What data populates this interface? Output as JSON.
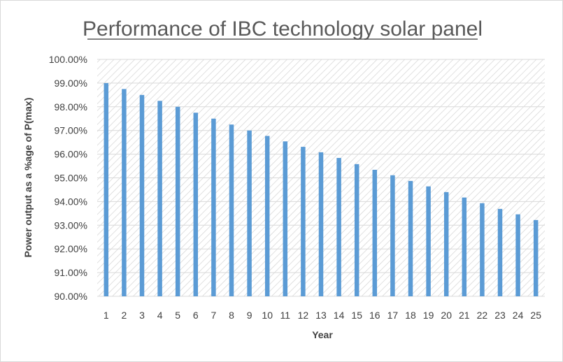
{
  "chart_data": {
    "type": "bar",
    "title": "Performance of IBC technology solar panel",
    "xlabel": "Year",
    "ylabel": "Power output as a %age of P(max)",
    "ylim": [
      90,
      100
    ],
    "ytick_step": 1,
    "ytick_labels": [
      "90.00%",
      "91.00%",
      "92.00%",
      "93.00%",
      "94.00%",
      "95.00%",
      "96.00%",
      "97.00%",
      "98.00%",
      "99.00%",
      "100.00%"
    ],
    "categories": [
      "1",
      "2",
      "3",
      "4",
      "5",
      "6",
      "7",
      "8",
      "9",
      "10",
      "11",
      "12",
      "13",
      "14",
      "15",
      "16",
      "17",
      "18",
      "19",
      "20",
      "21",
      "22",
      "23",
      "24",
      "25"
    ],
    "values": [
      99.0,
      98.75,
      98.5,
      98.25,
      98.0,
      97.75,
      97.5,
      97.25,
      97.0,
      96.77,
      96.54,
      96.31,
      96.08,
      95.84,
      95.58,
      95.34,
      95.11,
      94.87,
      94.64,
      94.4,
      94.17,
      93.93,
      93.69,
      93.46,
      93.22
    ],
    "bar_color": "#5b9bd5",
    "grid": true,
    "legend": "none"
  }
}
